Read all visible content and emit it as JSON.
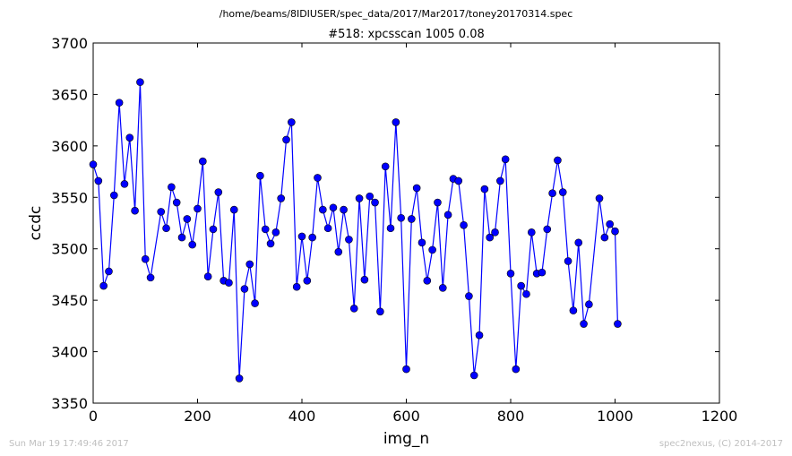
{
  "suptitle": "/home/beams/8IDIUSER/spec_data/2017/Mar2017/toney20170314.spec",
  "footer": {
    "left": "Sun Mar 19 17:49:46 2017",
    "right": "spec2nexus, (C) 2014-2017"
  },
  "chart_data": {
    "type": "line",
    "title": "#518: xpcsscan 1005 0.08",
    "xlabel": "img_n",
    "ylabel": "ccdc",
    "xlim": [
      0,
      1200
    ],
    "ylim": [
      3350,
      3700
    ],
    "xticks": [
      0,
      200,
      400,
      600,
      800,
      1000,
      1200
    ],
    "yticks": [
      3350,
      3400,
      3450,
      3500,
      3550,
      3600,
      3650,
      3700
    ],
    "grid": false,
    "marker": "circle",
    "color": "#0000ff",
    "series": [
      {
        "x": [
          0,
          10,
          20,
          30,
          40,
          50,
          60,
          70,
          80,
          90,
          100,
          110,
          130,
          140,
          150,
          160,
          170,
          180,
          190,
          200,
          210,
          220,
          230,
          240,
          250,
          260,
          270,
          280,
          290,
          300,
          310,
          320,
          330,
          340,
          350,
          360,
          370,
          380,
          390,
          400,
          410,
          420,
          430,
          440,
          450,
          460,
          470,
          480,
          490,
          500,
          510,
          520,
          530,
          540,
          550,
          560,
          570,
          580,
          590,
          600,
          610,
          620,
          630,
          640,
          650,
          660,
          670,
          680,
          690,
          700,
          710,
          720,
          730,
          740,
          750,
          760,
          770,
          780,
          790,
          800,
          810,
          820,
          830,
          840,
          850,
          860,
          870,
          880,
          890,
          900,
          910,
          920,
          930,
          940,
          950,
          970,
          980,
          990,
          1000,
          1005
        ],
        "y": [
          3582,
          3566,
          3464,
          3478,
          3552,
          3642,
          3563,
          3608,
          3537,
          3662,
          3490,
          3472,
          3536,
          3520,
          3560,
          3545,
          3511,
          3529,
          3504,
          3539,
          3585,
          3473,
          3519,
          3555,
          3469,
          3467,
          3538,
          3374,
          3461,
          3485,
          3447,
          3571,
          3519,
          3505,
          3516,
          3549,
          3606,
          3623,
          3463,
          3512,
          3469,
          3511,
          3569,
          3538,
          3520,
          3540,
          3497,
          3538,
          3509,
          3442,
          3549,
          3470,
          3551,
          3545,
          3439,
          3580,
          3520,
          3623,
          3530,
          3383,
          3529,
          3559,
          3506,
          3469,
          3499,
          3545,
          3462,
          3533,
          3568,
          3566,
          3523,
          3454,
          3377,
          3416,
          3558,
          3511,
          3516,
          3566,
          3587,
          3476,
          3383,
          3464,
          3456,
          3516,
          3476,
          3477,
          3519,
          3554,
          3586,
          3555,
          3488,
          3440,
          3506,
          3427,
          3446,
          3549,
          3511,
          3524,
          3517,
          3427
        ]
      }
    ]
  }
}
